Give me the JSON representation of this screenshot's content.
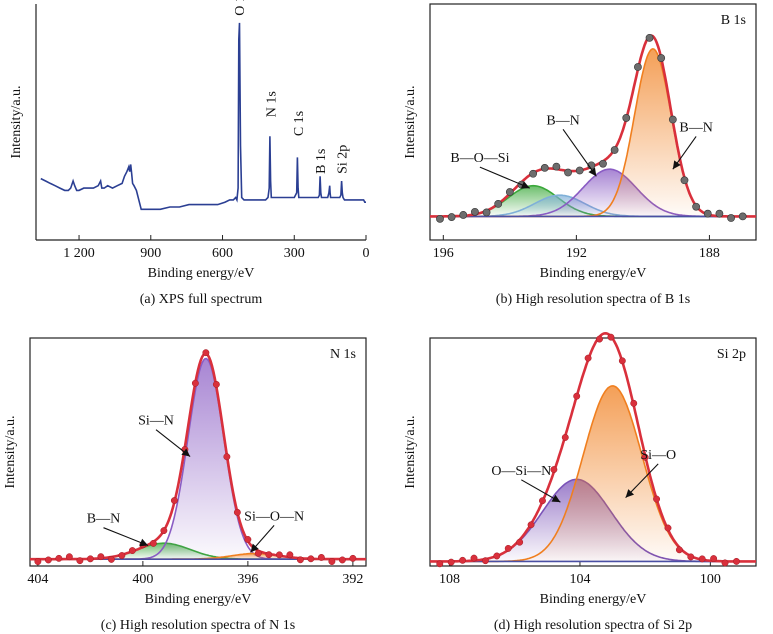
{
  "chart_data": [
    {
      "id": "a",
      "type": "line",
      "caption": "(a) XPS full spectrum",
      "xlabel": "Binding energy/eV",
      "ylabel": "Intensity/a.u.",
      "xlim": [
        1380,
        0
      ],
      "ylim": [
        0,
        100
      ],
      "xticks": [
        1200,
        900,
        600,
        300,
        0
      ],
      "xtick_labels": [
        "1 200",
        "900",
        "600",
        "300",
        "0"
      ],
      "series": [
        {
          "color": "#2b3f93",
          "x": [
            1360,
            1340,
            1320,
            1300,
            1280,
            1260,
            1245,
            1235,
            1225,
            1218,
            1210,
            1200,
            1180,
            1160,
            1140,
            1120,
            1110,
            1105,
            1095,
            1080,
            1060,
            1040,
            1020,
            1010,
            1000,
            992,
            988,
            984,
            980,
            976,
            970,
            960,
            940,
            900,
            860,
            820,
            780,
            740,
            700,
            660,
            620,
            590,
            570,
            555,
            545,
            540,
            535,
            532,
            529,
            525,
            520,
            510,
            500,
            480,
            460,
            440,
            420,
            410,
            405,
            402,
            399,
            396,
            390,
            380,
            360,
            340,
            320,
            300,
            290,
            287,
            284,
            281,
            278,
            270,
            260,
            240,
            220,
            200,
            195,
            192,
            189,
            186,
            180,
            170,
            160,
            155,
            152,
            150,
            148,
            145,
            140,
            130,
            120,
            110,
            105,
            102,
            99,
            96,
            90,
            80,
            60,
            40,
            20,
            10,
            5,
            0
          ],
          "y": [
            26,
            25,
            24,
            23,
            22,
            21,
            21,
            22,
            25,
            23,
            21,
            21,
            22,
            22,
            22,
            23,
            25,
            22,
            22,
            23,
            22,
            23,
            24,
            27,
            29,
            31,
            29,
            32,
            28,
            24,
            23,
            21,
            13,
            13,
            13,
            14,
            14,
            15,
            15,
            15,
            15,
            16,
            17,
            17,
            18,
            17,
            22,
            85,
            92,
            40,
            18,
            17,
            17,
            17,
            17,
            17,
            17,
            18,
            22,
            44,
            25,
            18,
            18,
            18,
            18,
            18,
            18,
            18,
            20,
            35,
            22,
            18,
            18,
            18,
            18,
            18,
            18,
            18,
            19,
            27,
            20,
            18,
            18,
            18,
            18,
            20,
            23,
            20,
            18,
            18,
            18,
            18,
            18,
            18,
            19,
            25,
            20,
            18,
            17,
            17,
            17,
            17,
            17,
            17,
            16,
            16
          ]
        }
      ],
      "annotations": [
        {
          "text": "O 1s",
          "x": 532,
          "y": 95
        },
        {
          "text": "N 1s",
          "x": 399,
          "y": 52
        },
        {
          "text": "C 1s",
          "x": 284,
          "y": 44
        },
        {
          "text": "B 1s",
          "x": 192,
          "y": 28
        },
        {
          "text": "Si 2p",
          "x": 102,
          "y": 28
        }
      ]
    },
    {
      "id": "b",
      "type": "line",
      "caption": "(b) High resolution spectra of B 1s",
      "title": "B 1s",
      "xlabel": "Binding energy/eV",
      "ylabel": "Intensity/a.u.",
      "xlim": [
        196.4,
        186.6
      ],
      "ylim": [
        0,
        100
      ],
      "xticks": [
        196,
        192,
        188
      ],
      "xtick_labels": [
        "196",
        "192",
        "188"
      ],
      "baseline": 10,
      "series": [
        {
          "role": "component",
          "color": "#3aa83a",
          "center": 193.3,
          "sigma": 0.75,
          "height": 13
        },
        {
          "role": "component",
          "color": "#7fb0d8",
          "center": 192.5,
          "sigma": 0.75,
          "height": 9
        },
        {
          "role": "component",
          "color": "#8a5cc4",
          "center": 191.0,
          "sigma": 0.8,
          "height": 20
        },
        {
          "role": "component",
          "color": "#f07f1f",
          "center": 189.7,
          "sigma": 0.55,
          "height": 71
        },
        {
          "role": "fit",
          "color": "#d9303c"
        },
        {
          "role": "data",
          "color": "#7a7a7a",
          "marker": "circle",
          "x_step": 0.35
        }
      ],
      "annotations": [
        {
          "text": "B—O—Si",
          "x": 194.9,
          "y": 33,
          "arrow_to": [
            193.4,
            22
          ]
        },
        {
          "text": "B—N",
          "x": 192.4,
          "y": 49,
          "arrow_to": [
            191.4,
            27
          ]
        },
        {
          "text": "B—N",
          "x": 188.4,
          "y": 46,
          "arrow_to": [
            189.1,
            30
          ]
        }
      ]
    },
    {
      "id": "c",
      "type": "line",
      "caption": "(c) High resolution spectra of N 1s",
      "title": "N 1s",
      "xlabel": "Binding energy/eV",
      "ylabel": "Intensity/a.u.",
      "xlim": [
        404.3,
        391.5
      ],
      "ylim": [
        0,
        100
      ],
      "xticks": [
        404,
        400,
        396,
        392
      ],
      "xtick_labels": [
        "404",
        "400",
        "396",
        "392"
      ],
      "baseline": 3,
      "series": [
        {
          "role": "component",
          "color": "#3aa83a",
          "center": 399.2,
          "sigma": 1.0,
          "height": 7
        },
        {
          "role": "component",
          "color": "#8a5cc4",
          "center": 397.6,
          "sigma": 0.68,
          "height": 88
        },
        {
          "role": "component",
          "color": "#f07f1f",
          "center": 395.7,
          "sigma": 0.9,
          "height": 2.5
        },
        {
          "role": "fit",
          "color": "#d9303c"
        },
        {
          "role": "data",
          "color": "#d9303c",
          "marker": "circle",
          "x_step": 0.4
        }
      ],
      "annotations": [
        {
          "text": "Si—N",
          "x": 399.5,
          "y": 62,
          "arrow_to": [
            398.2,
            48
          ]
        },
        {
          "text": "B—N",
          "x": 401.5,
          "y": 19,
          "arrow_to": [
            399.8,
            9
          ]
        },
        {
          "text": "Si—O—N",
          "x": 395.0,
          "y": 20,
          "arrow_to": [
            395.9,
            6
          ]
        }
      ]
    },
    {
      "id": "d",
      "type": "line",
      "caption": "(d) High resolution spectra of Si 2p",
      "title": "Si 2p",
      "xlabel": "Binding energy/eV",
      "ylabel": "Intensity/a.u.",
      "xlim": [
        108.6,
        98.6
      ],
      "ylim": [
        0,
        100
      ],
      "xticks": [
        108,
        104,
        100
      ],
      "xtick_labels": [
        "108",
        "104",
        "100"
      ],
      "baseline": 2,
      "series": [
        {
          "role": "component",
          "color": "#7a52b8",
          "center": 104.1,
          "sigma": 1.05,
          "height": 36
        },
        {
          "role": "component",
          "color": "#f07f1f",
          "center": 103.0,
          "sigma": 0.9,
          "height": 77
        },
        {
          "role": "fit",
          "color": "#d9303c"
        },
        {
          "role": "data",
          "color": "#d9303c",
          "marker": "circle",
          "x_step": 0.35
        }
      ],
      "annotations": [
        {
          "text": "O—Si—N",
          "x": 105.8,
          "y": 40,
          "arrow_to": [
            104.6,
            28
          ]
        },
        {
          "text": "Si—O",
          "x": 101.6,
          "y": 47,
          "arrow_to": [
            102.6,
            30
          ]
        }
      ]
    }
  ]
}
